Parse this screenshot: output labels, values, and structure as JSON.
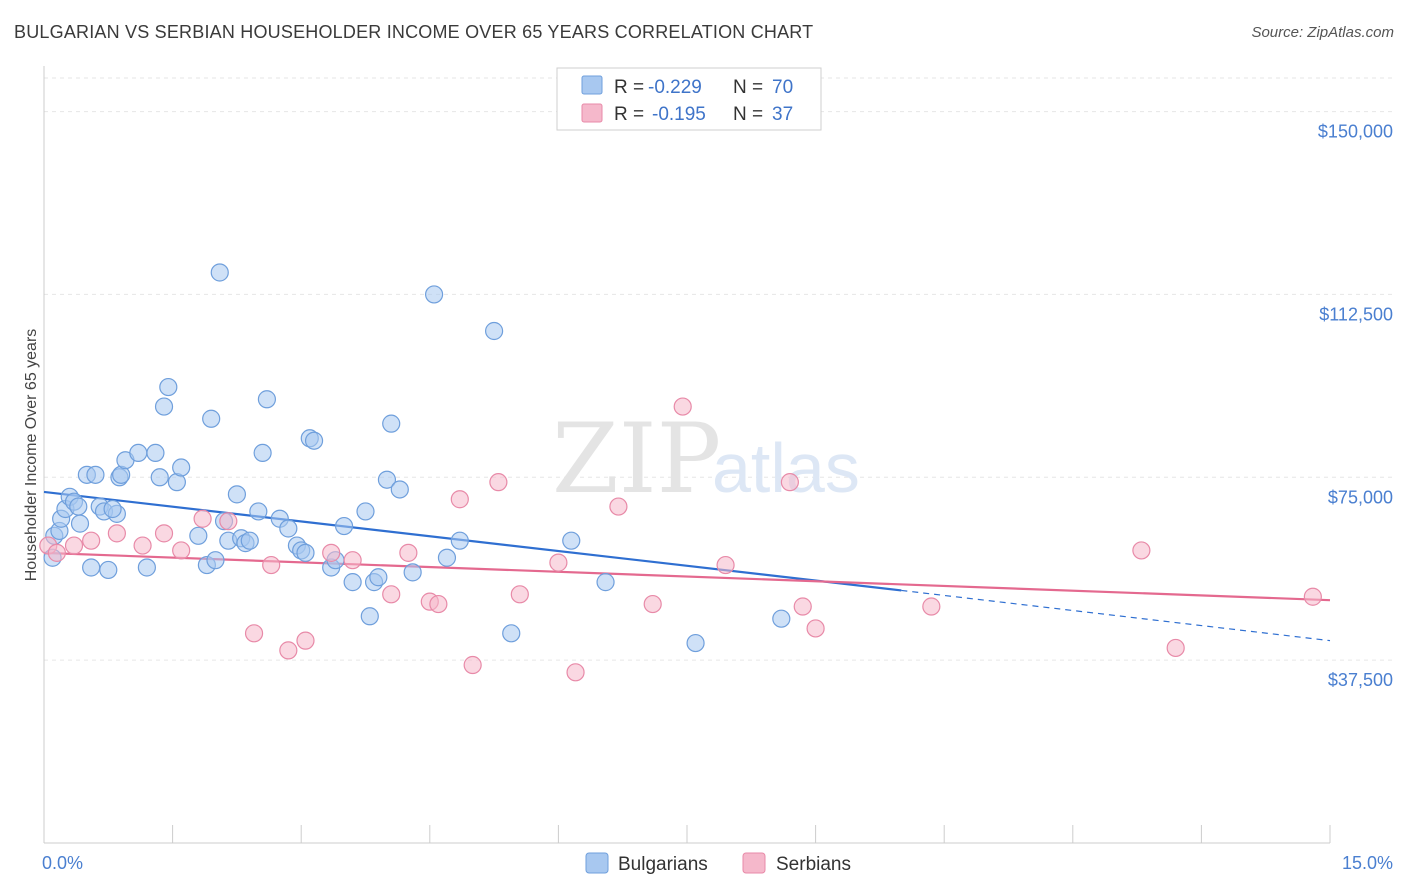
{
  "header": {
    "title": "BULGARIAN VS SERBIAN HOUSEHOLDER INCOME OVER 65 YEARS CORRELATION CHART",
    "source": "Source: ZipAtlas.com"
  },
  "watermark": {
    "zip": "ZIP",
    "atlas": "atlas"
  },
  "chart_data": {
    "type": "scatter",
    "title": "BULGARIAN VS SERBIAN HOUSEHOLDER INCOME OVER 65 YEARS CORRELATION CHART",
    "xlabel": "",
    "ylabel": "Householder Income Over 65 years",
    "xlim": [
      0,
      15
    ],
    "ylim": [
      0,
      157500
    ],
    "x_tick_labels": [
      "0.0%",
      "15.0%"
    ],
    "y_ticks": [
      37500,
      75000,
      112500,
      150000
    ],
    "y_tick_labels": [
      "$37,500",
      "$75,000",
      "$112,500",
      "$150,000"
    ],
    "grid": "horizontal dashed",
    "legend_position": "bottom-center",
    "stats": [
      {
        "r_label": "R =",
        "r_value": "-0.229",
        "n_label": "N =",
        "n_value": "70",
        "color": "#a8c8f0"
      },
      {
        "r_label": "R =",
        "r_value": "-0.195",
        "n_label": "N =",
        "n_value": "37",
        "color": "#f5b8cb"
      }
    ],
    "series": [
      {
        "name": "Bulgarians",
        "color": "#a8c8f0",
        "edge": "#6f9fdc",
        "trend_color": "#2f6fd1",
        "trend": {
          "x0": 0,
          "y0": 72000,
          "x1": 10.0,
          "y1": 51800,
          "dash_x1": 15.0,
          "dash_y1": 41500
        },
        "points": [
          [
            0.1,
            58500
          ],
          [
            0.12,
            63000
          ],
          [
            0.18,
            64000
          ],
          [
            0.2,
            66500
          ],
          [
            0.25,
            68500
          ],
          [
            0.3,
            71000
          ],
          [
            0.35,
            70000
          ],
          [
            0.4,
            69000
          ],
          [
            0.42,
            65500
          ],
          [
            0.5,
            75500
          ],
          [
            0.55,
            56500
          ],
          [
            0.6,
            75500
          ],
          [
            0.65,
            69000
          ],
          [
            0.7,
            68000
          ],
          [
            0.75,
            56000
          ],
          [
            0.85,
            67500
          ],
          [
            0.8,
            68500
          ],
          [
            0.88,
            75000
          ],
          [
            0.9,
            75500
          ],
          [
            0.95,
            78500
          ],
          [
            1.1,
            80000
          ],
          [
            1.2,
            56500
          ],
          [
            1.3,
            80000
          ],
          [
            1.35,
            75000
          ],
          [
            1.4,
            89500
          ],
          [
            1.45,
            93500
          ],
          [
            1.55,
            74000
          ],
          [
            1.6,
            77000
          ],
          [
            1.8,
            63000
          ],
          [
            1.9,
            57000
          ],
          [
            1.95,
            87000
          ],
          [
            2.0,
            58000
          ],
          [
            2.05,
            117000
          ],
          [
            2.1,
            66000
          ],
          [
            2.15,
            62000
          ],
          [
            2.25,
            71500
          ],
          [
            2.3,
            62500
          ],
          [
            2.35,
            61500
          ],
          [
            2.4,
            62000
          ],
          [
            2.5,
            68000
          ],
          [
            2.55,
            80000
          ],
          [
            2.6,
            91000
          ],
          [
            2.75,
            66500
          ],
          [
            2.85,
            64500
          ],
          [
            2.95,
            61000
          ],
          [
            3.0,
            60000
          ],
          [
            3.05,
            59500
          ],
          [
            3.1,
            83000
          ],
          [
            3.15,
            82500
          ],
          [
            3.35,
            56500
          ],
          [
            3.4,
            58000
          ],
          [
            3.5,
            65000
          ],
          [
            3.6,
            53500
          ],
          [
            3.75,
            68000
          ],
          [
            3.8,
            46500
          ],
          [
            3.85,
            53500
          ],
          [
            3.9,
            54500
          ],
          [
            4.0,
            74500
          ],
          [
            4.05,
            86000
          ],
          [
            4.15,
            72500
          ],
          [
            4.3,
            55500
          ],
          [
            4.55,
            112500
          ],
          [
            4.7,
            58500
          ],
          [
            4.85,
            62000
          ],
          [
            5.25,
            105000
          ],
          [
            5.45,
            43000
          ],
          [
            6.15,
            62000
          ],
          [
            6.55,
            53500
          ],
          [
            7.6,
            41000
          ],
          [
            8.6,
            46000
          ]
        ]
      },
      {
        "name": "Serbians",
        "color": "#f5b8cb",
        "edge": "#e88aa8",
        "trend_color": "#e4698f",
        "trend": {
          "x0": 0,
          "y0": 59500,
          "x1": 15.0,
          "y1": 49800
        },
        "points": [
          [
            0.05,
            61000
          ],
          [
            0.15,
            59500
          ],
          [
            0.35,
            61000
          ],
          [
            0.55,
            62000
          ],
          [
            0.85,
            63500
          ],
          [
            1.15,
            61000
          ],
          [
            1.4,
            63500
          ],
          [
            1.6,
            60000
          ],
          [
            1.85,
            66500
          ],
          [
            2.15,
            66000
          ],
          [
            2.45,
            43000
          ],
          [
            2.65,
            57000
          ],
          [
            2.85,
            39500
          ],
          [
            3.05,
            41500
          ],
          [
            3.35,
            59500
          ],
          [
            3.6,
            58000
          ],
          [
            4.05,
            51000
          ],
          [
            4.25,
            59500
          ],
          [
            4.5,
            49500
          ],
          [
            4.6,
            49000
          ],
          [
            4.85,
            70500
          ],
          [
            5.0,
            36500
          ],
          [
            5.3,
            74000
          ],
          [
            5.55,
            51000
          ],
          [
            6.0,
            57500
          ],
          [
            6.2,
            35000
          ],
          [
            6.7,
            69000
          ],
          [
            7.1,
            49000
          ],
          [
            7.45,
            89500
          ],
          [
            7.95,
            57000
          ],
          [
            8.7,
            74000
          ],
          [
            8.85,
            48500
          ],
          [
            9.0,
            44000
          ],
          [
            10.35,
            48500
          ],
          [
            12.8,
            60000
          ],
          [
            13.2,
            40000
          ],
          [
            14.8,
            50500
          ]
        ]
      }
    ]
  }
}
